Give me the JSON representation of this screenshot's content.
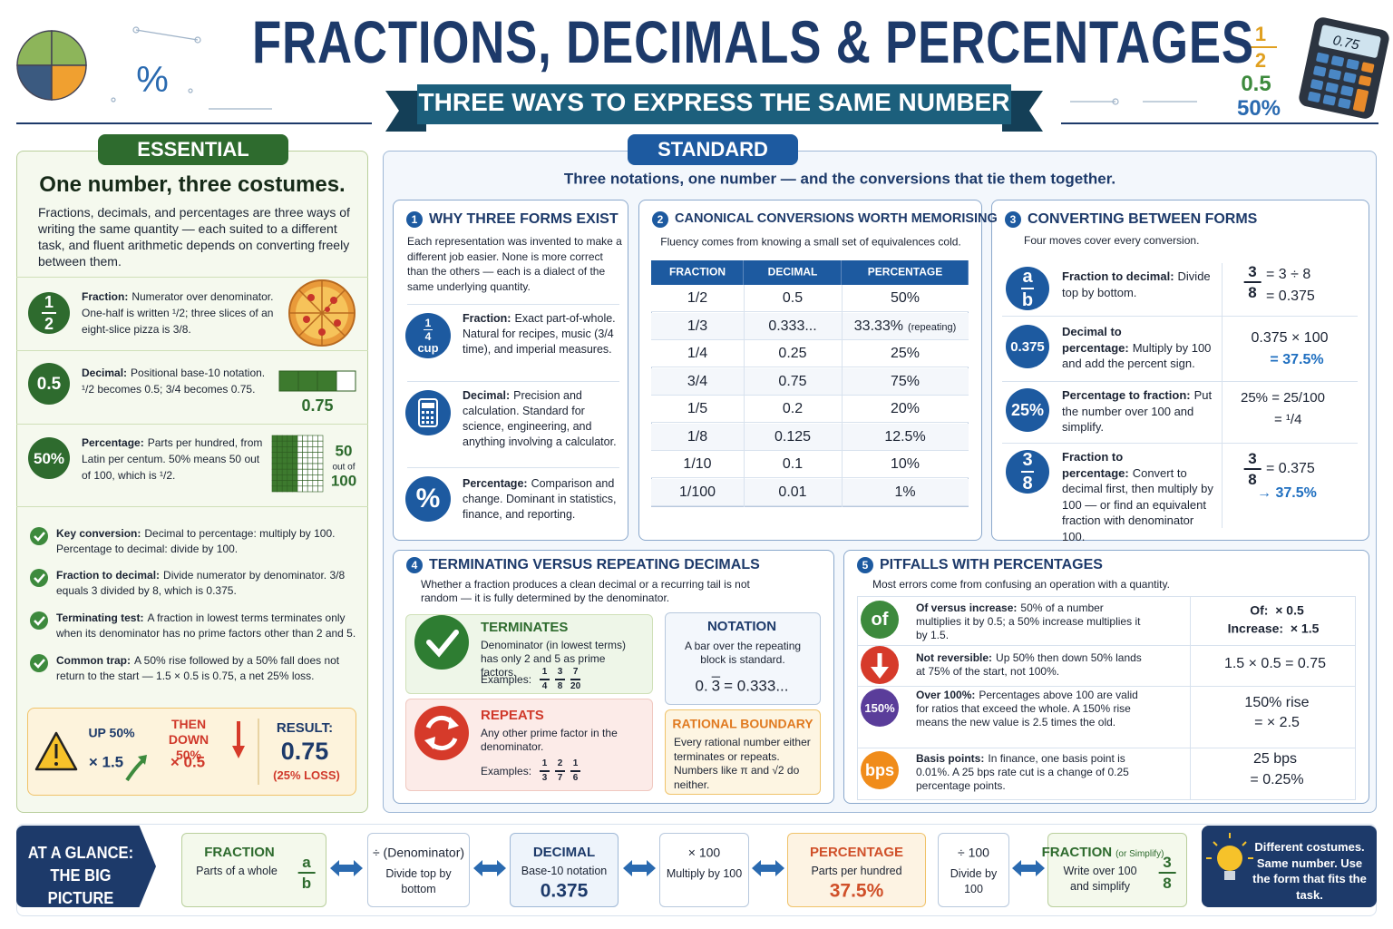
{
  "header": {
    "title": "FRACTIONS, DECIMALS & PERCENTAGES",
    "subtitle": "THREE WAYS TO EXPRESS THE SAME NUMBER",
    "deco": {
      "percent": "%",
      "frac_top": "1",
      "frac_bottom": "2",
      "decimal": "0.5",
      "percentage": "50%",
      "calculator": "0.75"
    }
  },
  "essential": {
    "badge": "ESSENTIAL",
    "title": "One number, three costumes.",
    "intro": "Fractions, decimals, and percentages are three ways of writing the same quantity — each suited to a different task, and fluent arithmetic depends on converting freely between them.",
    "forms": [
      {
        "icon_top": "1",
        "icon_bottom": "2",
        "label": "Fraction:",
        "text": "Numerator over denominator. One-half is written ¹/2; three slices of an eight-slice pizza is 3/8."
      },
      {
        "icon": "0.5",
        "label": "Decimal:",
        "text": "Positional base-10 notation. ¹/2 becomes 0.5; 3/4 becomes 0.75.",
        "figure": "0.75"
      },
      {
        "icon": "50%",
        "label": "Percentage:",
        "text": "Parts per hundred, from Latin per centum. 50% means 50 out of 100, which is ¹/2.",
        "figure": [
          "50",
          "out of",
          "100"
        ]
      }
    ],
    "points": [
      {
        "label": "Key conversion:",
        "text": "Decimal to percentage: multiply by 100. Percentage to decimal: divide by 100."
      },
      {
        "label": "Fraction to decimal:",
        "text": "Divide numerator by denominator. 3/8 equals 3 divided by 8, which is 0.375."
      },
      {
        "label": "Terminating test:",
        "text": "A fraction in lowest terms terminates only when its denominator has no prime factors other than 2 and 5."
      },
      {
        "label": "Common trap:",
        "text": "A 50% rise followed by a 50% fall does not return to the start — 1.5 × 0.5 is 0.75, a net 25% loss."
      }
    ],
    "example": {
      "step1": "UP 50%",
      "mult1": "× 1.5",
      "step2": "THEN DOWN 50%",
      "mult2": "× 0.5",
      "result_label": "RESULT:",
      "result": "0.75",
      "note": "(25% LOSS)"
    }
  },
  "standard": {
    "badge": "STANDARD",
    "intro": "Three notations, one number — and the conversions that tie them together.",
    "s1": {
      "num": "1",
      "title": "WHY THREE FORMS EXIST",
      "intro": "Each representation was invented to make a different job easier. None is more correct than the others — each is a dialect of the same underlying quantity.",
      "items": [
        {
          "icon": [
            "1",
            "4",
            "cup"
          ],
          "label": "Fraction:",
          "text": "Exact part-of-whole. Natural for recipes, music (3/4 time), and imperial measures."
        },
        {
          "label": "Decimal:",
          "text": "Precision and calculation. Standard for science, engineering, and anything involving a calculator."
        },
        {
          "icon": "%",
          "label": "Percentage:",
          "text": "Comparison and change. Dominant in statistics, finance, and reporting."
        }
      ]
    },
    "s2": {
      "num": "2",
      "title": "CANONICAL CONVERSIONS WORTH MEMORISING",
      "intro": "Fluency comes from knowing a small set of equivalences cold.",
      "headers": [
        "FRACTION",
        "DECIMAL",
        "PERCENTAGE"
      ],
      "rows": [
        [
          "1/2",
          "0.5",
          "50%"
        ],
        [
          "1/3",
          "0.333...",
          "33.33%"
        ],
        [
          "1/4",
          "0.25",
          "25%"
        ],
        [
          "3/4",
          "0.75",
          "75%"
        ],
        [
          "1/5",
          "0.2",
          "20%"
        ],
        [
          "1/8",
          "0.125",
          "12.5%"
        ],
        [
          "1/10",
          "0.1",
          "10%"
        ],
        [
          "1/100",
          "0.01",
          "1%"
        ]
      ],
      "row_note": "(repeating)"
    },
    "s3": {
      "num": "3",
      "title": "CONVERTING BETWEEN FORMS",
      "intro": "Four moves cover every conversion.",
      "moves": [
        {
          "icon": [
            "a",
            "b"
          ],
          "label": "Fraction to decimal:",
          "text": "Divide top by bottom.",
          "frac": [
            "3",
            "8"
          ],
          "work": [
            "= 3 ÷ 8",
            "= 0.375"
          ]
        },
        {
          "icon": "0.375",
          "label": "Decimal to percentage:",
          "text": "Multiply by 100 and add the percent sign.",
          "work": [
            "0.375 × 100",
            "= 37.5%"
          ]
        },
        {
          "icon": "25%",
          "label": "Percentage to fraction:",
          "text": "Put the number over 100 and simplify.",
          "work": [
            "25% = 25/100",
            "= ¹/4"
          ]
        },
        {
          "icon": [
            "3",
            "8"
          ],
          "label": "Fraction to percentage:",
          "text": "Convert to decimal first, then multiply by 100 — or find an equivalent fraction with denominator 100.",
          "frac": [
            "3",
            "8"
          ],
          "work": [
            "= 0.375",
            "→ 37.5%"
          ]
        }
      ]
    },
    "s4": {
      "num": "4",
      "title": "TERMINATING VERSUS REPEATING DECIMALS",
      "intro": "Whether a fraction produces a clean decimal or a recurring tail is not random — it is fully determined by the denominator.",
      "terminates": {
        "title": "TERMINATES",
        "text": "Denominator (in lowest terms) has only 2 and 5 as prime factors.",
        "examples_label": "Examples:",
        "examples": [
          [
            "1",
            "4"
          ],
          [
            "3",
            "8"
          ],
          [
            "7",
            "20"
          ]
        ]
      },
      "repeats": {
        "title": "REPEATS",
        "text": "Any other prime factor in the denominator.",
        "examples_label": "Examples:",
        "examples": [
          [
            "1",
            "3"
          ],
          [
            "2",
            "7"
          ],
          [
            "1",
            "6"
          ]
        ]
      },
      "notation": {
        "title": "NOTATION",
        "text": "A bar over the repeating block is standard.",
        "lead": "0.",
        "bar": "3",
        "rest": "= 0.333..."
      },
      "boundary": {
        "title": "RATIONAL BOUNDARY",
        "text": "Every rational number either terminates or repeats. Numbers like π and √2 do neither."
      }
    },
    "s5": {
      "num": "5",
      "title": "PITFALLS WITH PERCENTAGES",
      "intro": "Most errors come from confusing an operation with a quantity.",
      "items": [
        {
          "icon": "of",
          "label": "Of versus increase:",
          "text": "50% of a number multiplies it by 0.5; a 50% increase multiplies it by 1.5.",
          "work": [
            "Of:  × 0.5",
            "Increase:  × 1.5"
          ]
        },
        {
          "label": "Not reversible:",
          "text": "Up 50% then down 50% lands at 75% of the start, not 100%.",
          "work": [
            "1.5 × 0.5 = 0.75"
          ]
        },
        {
          "icon": "150%",
          "label": "Over 100%:",
          "text": "Percentages above 100 are valid for ratios that exceed the whole. A 150% rise means the new value is 2.5 times the old.",
          "work": [
            "150% rise",
            "= × 2.5"
          ]
        },
        {
          "icon": "bps",
          "label": "Basis points:",
          "text": "In finance, one basis point is 0.01%. A 25 bps rate cut is a change of 0.25 percentage points.",
          "work": [
            "25 bps",
            "= 0.25%"
          ]
        }
      ]
    }
  },
  "footer": {
    "title": "AT A GLANCE: THE BIG PICTURE",
    "steps": [
      {
        "title": "FRACTION",
        "text": "Parts of a whole",
        "frac": [
          "a",
          "b"
        ]
      },
      {
        "title": "÷ (Denominator)",
        "text": "Divide top by bottom"
      },
      {
        "title": "DECIMAL",
        "text": "Base-10 notation",
        "figure": "0.375"
      },
      {
        "title": "× 100",
        "text": "Multiply by 100"
      },
      {
        "title": "PERCENTAGE",
        "text": "Parts per hundred",
        "figure": "37.5%"
      },
      {
        "title": "÷ 100",
        "text": "Divide by 100"
      },
      {
        "title": "FRACTION",
        "note": "(or Simplify)",
        "text": "Write over 100 and simplify",
        "frac": [
          "3",
          "8"
        ]
      }
    ],
    "closing": "Different costumes. Same number. Use the form that fits the task."
  }
}
